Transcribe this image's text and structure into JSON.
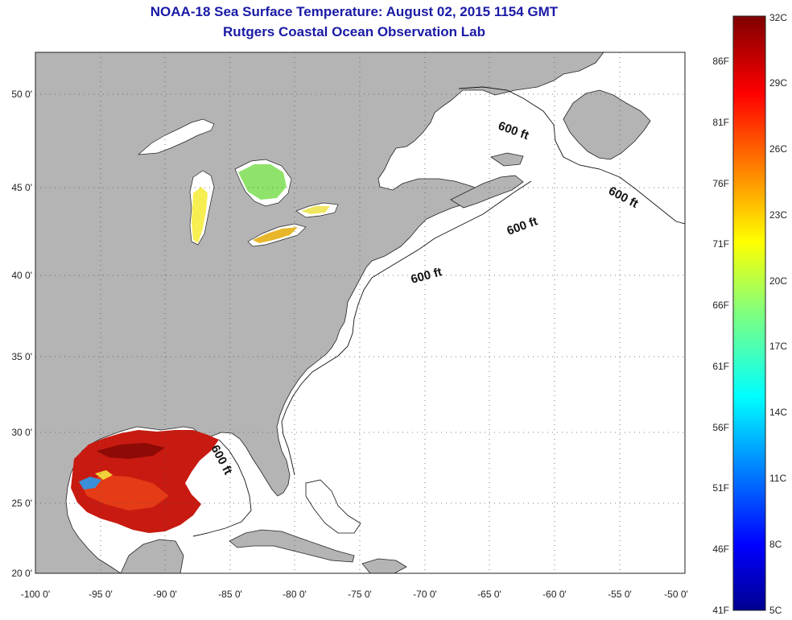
{
  "header": {
    "title": "NOAA-18 Sea Surface Temperature:  August 02, 2015 1154 GMT",
    "subtitle": "Rutgers Coastal Ocean Observation Lab"
  },
  "map": {
    "lon_range": [
      -100,
      -50
    ],
    "lat_range": [
      20,
      52.7
    ],
    "lon_ticks": [
      "-100 0'",
      "-95 0'",
      "-90 0'",
      "-85 0'",
      "-80 0'",
      "-75 0'",
      "-70 0'",
      "-65 0'",
      "-60 0'",
      "-55 0'",
      "-50 0'"
    ],
    "lat_ticks": [
      "20 0'",
      "25 0'",
      "30 0'",
      "35 0'",
      "40 0'",
      "45 0'",
      "50 0'"
    ],
    "contour_labels": [
      "600 ft",
      "600 ft",
      "600 ft",
      "600 ft",
      "600 ft"
    ],
    "land_color": "#b4b4b4",
    "grid": true
  },
  "colorbar": {
    "celsius_labels": [
      "32C",
      "29C",
      "26C",
      "23C",
      "20C",
      "17C",
      "14C",
      "11C",
      "8C",
      "5C"
    ],
    "fahrenheit_labels": [
      "86F",
      "81F",
      "76F",
      "71F",
      "66F",
      "61F",
      "56F",
      "51F",
      "46F",
      "41F"
    ],
    "range_c": [
      5,
      32
    ]
  }
}
